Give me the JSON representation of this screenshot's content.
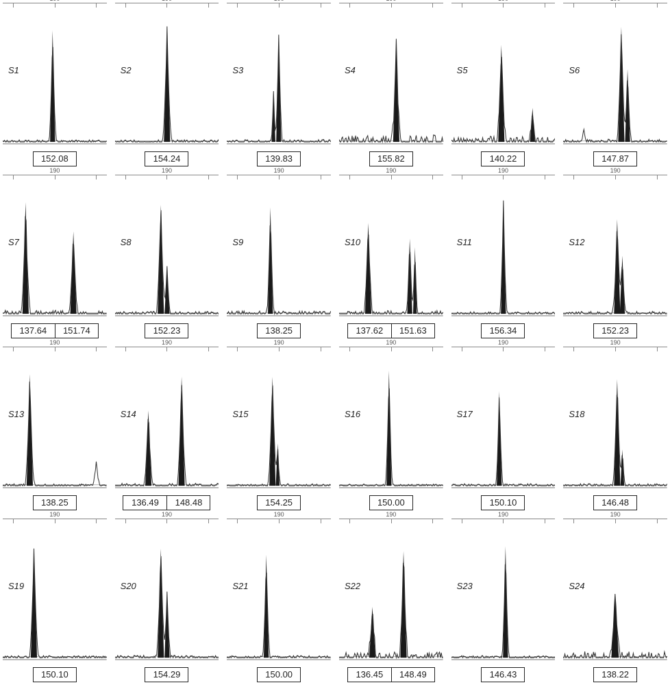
{
  "grid": {
    "cols": 6,
    "rows": 4
  },
  "colors": {
    "background": "#ffffff",
    "ruler": "#888888",
    "ruler_text": "#555555",
    "label_text": "#222222",
    "box_border": "#222222",
    "trace": "#333333",
    "peak_fill": "#1a1a1a",
    "baseline": "#9a9a9a"
  },
  "style": {
    "label_fontsize": 13,
    "label_fontstyle": "italic",
    "value_fontsize": 13,
    "ruler_fontsize": 9,
    "plot_aspect": 1.15
  },
  "ruler": {
    "tick_label": "190",
    "tick_pos_pct": [
      10,
      50,
      90
    ]
  },
  "panels": [
    {
      "sample": "S1",
      "values": [
        "152.08"
      ],
      "peaks": [
        {
          "x": 0.48,
          "h": 0.92,
          "w": 0.04
        }
      ],
      "noise": 0.05
    },
    {
      "sample": "S2",
      "values": [
        "154.24"
      ],
      "peaks": [
        {
          "x": 0.5,
          "h": 0.95,
          "w": 0.05
        }
      ],
      "noise": 0.05
    },
    {
      "sample": "S3",
      "values": [
        "139.83"
      ],
      "peaks": [
        {
          "x": 0.5,
          "h": 0.88,
          "w": 0.04
        },
        {
          "x": 0.45,
          "h": 0.4,
          "w": 0.03
        }
      ],
      "noise": 0.06
    },
    {
      "sample": "S4",
      "values": [
        "155.82"
      ],
      "peaks": [
        {
          "x": 0.55,
          "h": 0.82,
          "w": 0.05
        }
      ],
      "noise": 0.18
    },
    {
      "sample": "S5",
      "values": [
        "140.22"
      ],
      "peaks": [
        {
          "x": 0.48,
          "h": 0.8,
          "w": 0.05
        },
        {
          "x": 0.78,
          "h": 0.28,
          "w": 0.04
        }
      ],
      "noise": 0.14
    },
    {
      "sample": "S6",
      "values": [
        "147.87"
      ],
      "peaks": [
        {
          "x": 0.56,
          "h": 0.95,
          "w": 0.05
        },
        {
          "x": 0.62,
          "h": 0.6,
          "w": 0.04
        },
        {
          "x": 0.2,
          "h": 0.12,
          "w": 0.03
        }
      ],
      "noise": 0.07
    },
    {
      "sample": "S7",
      "values": [
        "137.64",
        "151.74"
      ],
      "peaks": [
        {
          "x": 0.22,
          "h": 0.92,
          "w": 0.05
        },
        {
          "x": 0.68,
          "h": 0.68,
          "w": 0.05
        }
      ],
      "noise": 0.09
    },
    {
      "sample": "S8",
      "values": [
        "152.23"
      ],
      "peaks": [
        {
          "x": 0.44,
          "h": 0.9,
          "w": 0.05
        },
        {
          "x": 0.5,
          "h": 0.38,
          "w": 0.04
        }
      ],
      "noise": 0.06
    },
    {
      "sample": "S9",
      "values": [
        "138.25"
      ],
      "peaks": [
        {
          "x": 0.42,
          "h": 0.88,
          "w": 0.04
        }
      ],
      "noise": 0.07
    },
    {
      "sample": "S10",
      "values": [
        "137.62",
        "151.63"
      ],
      "peaks": [
        {
          "x": 0.28,
          "h": 0.75,
          "w": 0.05
        },
        {
          "x": 0.68,
          "h": 0.62,
          "w": 0.04
        },
        {
          "x": 0.73,
          "h": 0.55,
          "w": 0.03
        }
      ],
      "noise": 0.08
    },
    {
      "sample": "S11",
      "values": [
        "156.34"
      ],
      "peaks": [
        {
          "x": 0.5,
          "h": 0.92,
          "w": 0.04
        }
      ],
      "noise": 0.05
    },
    {
      "sample": "S12",
      "values": [
        "152.23"
      ],
      "peaks": [
        {
          "x": 0.52,
          "h": 0.78,
          "w": 0.05
        },
        {
          "x": 0.57,
          "h": 0.48,
          "w": 0.04
        }
      ],
      "noise": 0.06
    },
    {
      "sample": "S13",
      "values": [
        "138.25"
      ],
      "peaks": [
        {
          "x": 0.26,
          "h": 0.92,
          "w": 0.05
        },
        {
          "x": 0.9,
          "h": 0.2,
          "w": 0.04
        }
      ],
      "noise": 0.05
    },
    {
      "sample": "S14",
      "values": [
        "136.49",
        "148.48"
      ],
      "peaks": [
        {
          "x": 0.32,
          "h": 0.62,
          "w": 0.05
        },
        {
          "x": 0.64,
          "h": 0.9,
          "w": 0.05
        }
      ],
      "noise": 0.06
    },
    {
      "sample": "S15",
      "values": [
        "154.25"
      ],
      "peaks": [
        {
          "x": 0.44,
          "h": 0.9,
          "w": 0.05
        },
        {
          "x": 0.49,
          "h": 0.35,
          "w": 0.03
        }
      ],
      "noise": 0.05
    },
    {
      "sample": "S16",
      "values": [
        "150.00"
      ],
      "peaks": [
        {
          "x": 0.48,
          "h": 0.95,
          "w": 0.04
        }
      ],
      "noise": 0.04
    },
    {
      "sample": "S17",
      "values": [
        "150.10"
      ],
      "peaks": [
        {
          "x": 0.46,
          "h": 0.78,
          "w": 0.04
        }
      ],
      "noise": 0.05
    },
    {
      "sample": "S18",
      "values": [
        "146.48"
      ],
      "peaks": [
        {
          "x": 0.52,
          "h": 0.88,
          "w": 0.05
        },
        {
          "x": 0.57,
          "h": 0.3,
          "w": 0.03
        }
      ],
      "noise": 0.05
    },
    {
      "sample": "S19",
      "values": [
        "150.10"
      ],
      "peaks": [
        {
          "x": 0.3,
          "h": 0.9,
          "w": 0.05
        }
      ],
      "noise": 0.05
    },
    {
      "sample": "S20",
      "values": [
        "154.29"
      ],
      "peaks": [
        {
          "x": 0.44,
          "h": 0.9,
          "w": 0.05
        },
        {
          "x": 0.5,
          "h": 0.55,
          "w": 0.04
        }
      ],
      "noise": 0.06
    },
    {
      "sample": "S21",
      "values": [
        "150.00"
      ],
      "peaks": [
        {
          "x": 0.38,
          "h": 0.85,
          "w": 0.04
        }
      ],
      "noise": 0.05
    },
    {
      "sample": "S22",
      "values": [
        "136.45",
        "148.49"
      ],
      "peaks": [
        {
          "x": 0.32,
          "h": 0.42,
          "w": 0.05
        },
        {
          "x": 0.62,
          "h": 0.88,
          "w": 0.05
        }
      ],
      "noise": 0.14
    },
    {
      "sample": "S23",
      "values": [
        "146.43"
      ],
      "peaks": [
        {
          "x": 0.52,
          "h": 0.92,
          "w": 0.04
        }
      ],
      "noise": 0.05
    },
    {
      "sample": "S24",
      "values": [
        "138.22"
      ],
      "peaks": [
        {
          "x": 0.5,
          "h": 0.52,
          "w": 0.06
        }
      ],
      "noise": 0.16
    }
  ]
}
